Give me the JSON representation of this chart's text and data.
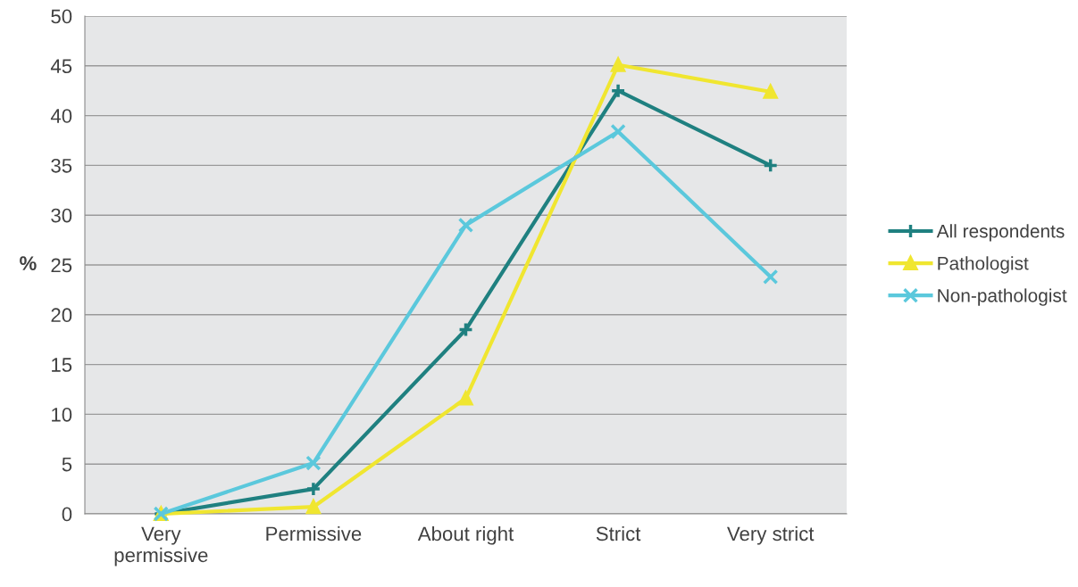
{
  "chart_data": {
    "type": "line",
    "ylabel": "%",
    "categories": [
      "Very\npermissive",
      "Permissive",
      "About right",
      "Strict",
      "Very strict"
    ],
    "series": [
      {
        "name": "All respondents",
        "color": "#1f8080",
        "marker": "cross",
        "values": [
          0,
          2.5,
          18.5,
          42.5,
          35.0
        ]
      },
      {
        "name": "Pathologist",
        "color": "#f0e630",
        "marker": "triangle",
        "values": [
          0,
          0.7,
          11.6,
          45.1,
          42.4
        ]
      },
      {
        "name": "Non-pathologist",
        "color": "#5bc8dc",
        "marker": "x",
        "values": [
          0,
          5.1,
          29.0,
          38.4,
          23.8
        ]
      }
    ],
    "ylim": [
      0,
      50
    ],
    "yticks": [
      0,
      5,
      10,
      15,
      20,
      25,
      30,
      35,
      40,
      45,
      50
    ],
    "grid": "y",
    "legend": "right",
    "line_style": "solid"
  }
}
